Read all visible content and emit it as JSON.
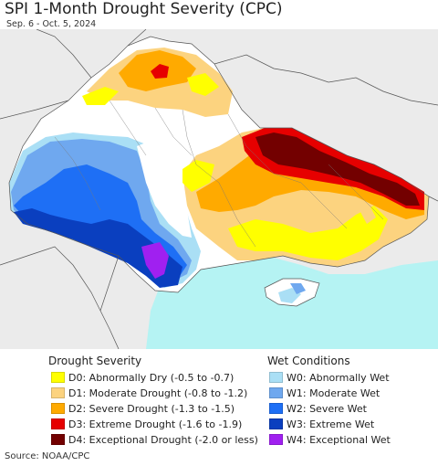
{
  "title": "SPI 1-Month Drought Severity (CPC)",
  "subtitle": "Sep. 6 - Oct. 5, 2024",
  "source": "Source: NOAA/CPC",
  "drought_legend": {
    "heading": "Drought Severity",
    "items": [
      {
        "label": "D0: Abnormally Dry (-0.5 to -0.7)",
        "color": "#ffff00"
      },
      {
        "label": "D1: Moderate Drought (-0.8 to -1.2)",
        "color": "#fcd37f"
      },
      {
        "label": "D2: Severe Drought (-1.3 to -1.5)",
        "color": "#ffaa00"
      },
      {
        "label": "D3: Extreme Drought (-1.6 to -1.9)",
        "color": "#e60000"
      },
      {
        "label": "D4: Exceptional Drought (-2.0 or less)",
        "color": "#730000"
      }
    ]
  },
  "wet_legend": {
    "heading": "Wet Conditions",
    "items": [
      {
        "label": "W0: Abnormally Wet",
        "color": "#aadff5"
      },
      {
        "label": "W1: Moderate Wet",
        "color": "#6fa8ef"
      },
      {
        "label": "W2: Severe Wet",
        "color": "#1e6ff5"
      },
      {
        "label": "W3: Extreme Wet",
        "color": "#0a3fbf"
      },
      {
        "label": "W4: Exceptional Wet",
        "color": "#a020f0"
      }
    ]
  },
  "map_colors": {
    "background_land": "#ebebeb",
    "sea": "#b5f3f3",
    "neutral": "#ffffff",
    "borders": "#555555"
  }
}
